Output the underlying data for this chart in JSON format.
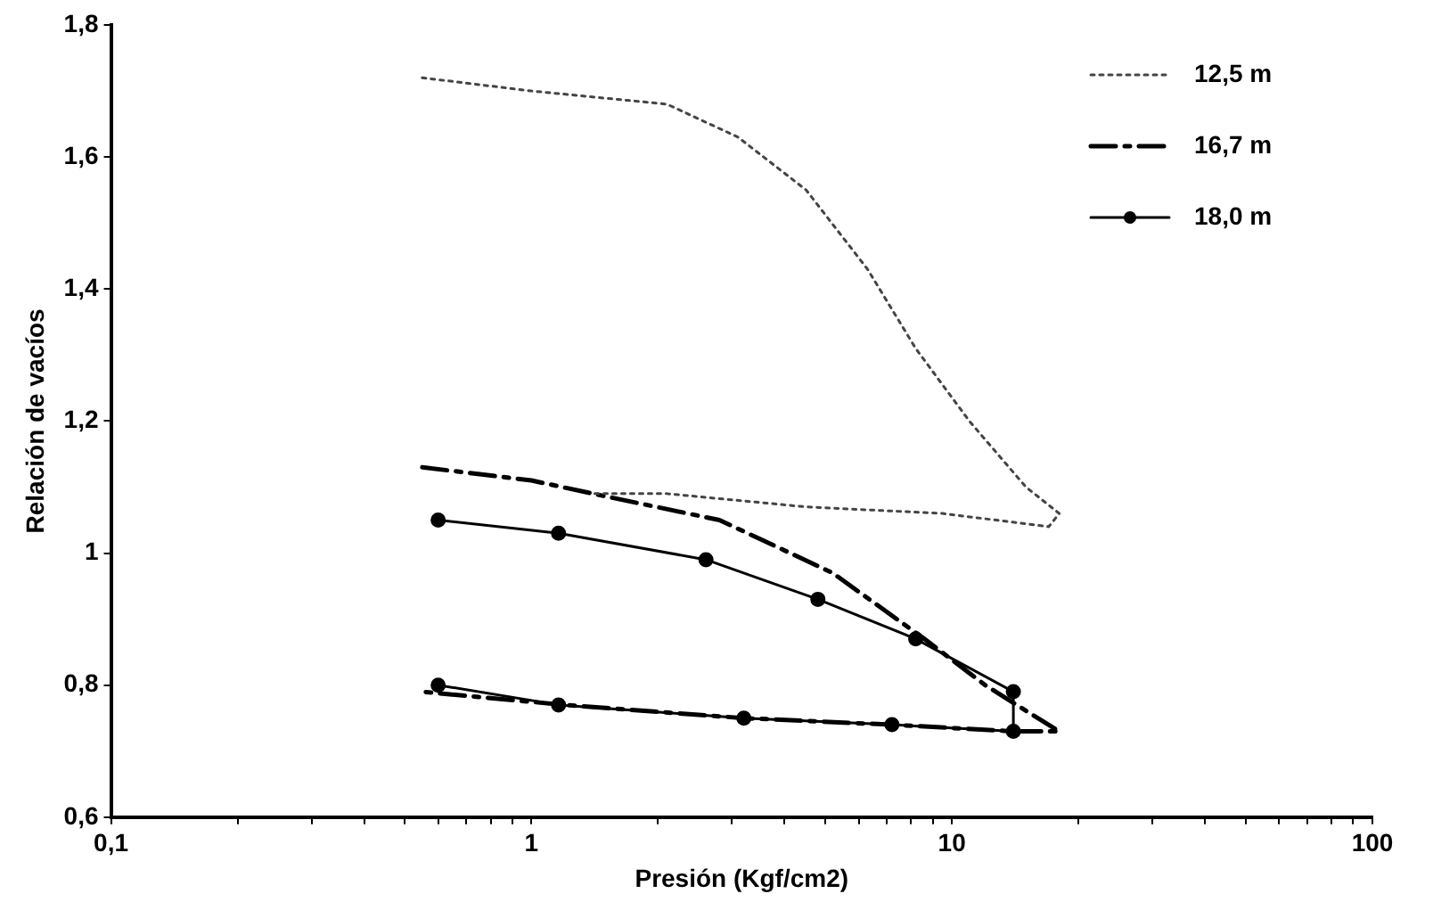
{
  "chart_data": {
    "type": "line",
    "xlabel": "Presión (Kgf/cm2)",
    "ylabel": "Relación de vacíos",
    "log": "x",
    "grid": false,
    "legend": "top right",
    "xlim": [
      0.1,
      100
    ],
    "xticks": [
      {
        "value": 0.1,
        "label": "0,1"
      },
      {
        "value": 0.2,
        "label": null
      },
      {
        "value": 0.3,
        "label": null
      },
      {
        "value": 0.4,
        "label": null
      },
      {
        "value": 0.5,
        "label": null
      },
      {
        "value": 0.6,
        "label": null
      },
      {
        "value": 0.7,
        "label": null
      },
      {
        "value": 0.8,
        "label": null
      },
      {
        "value": 0.9,
        "label": null
      },
      1,
      {
        "value": 2,
        "label": null
      },
      {
        "value": 3,
        "label": null
      },
      {
        "value": 4,
        "label": null
      },
      {
        "value": 5,
        "label": null
      },
      {
        "value": 6,
        "label": null
      },
      {
        "value": 7,
        "label": null
      },
      {
        "value": 8,
        "label": null
      },
      {
        "value": 9,
        "label": null
      },
      10,
      {
        "value": 20,
        "label": null
      },
      {
        "value": 30,
        "label": null
      },
      {
        "value": 40,
        "label": null
      },
      {
        "value": 50,
        "label": null
      },
      {
        "value": 60,
        "label": null
      },
      {
        "value": 70,
        "label": null
      },
      {
        "value": 80,
        "label": null
      },
      {
        "value": 90,
        "label": null
      },
      100
    ],
    "ylim": [
      0.6,
      1.8
    ],
    "yticks": [
      {
        "value": 0.6,
        "label": "0,6"
      },
      {
        "value": 0.8,
        "label": "0,8"
      },
      1,
      {
        "value": 1.2,
        "label": "1,2"
      },
      {
        "value": 1.4,
        "label": "1,4"
      },
      {
        "value": 1.6,
        "label": "1,6"
      },
      {
        "value": 1.8,
        "label": "1,8"
      }
    ],
    "series": [
      {
        "name": "12,5 m",
        "color": "#444444",
        "line_style": "dotted",
        "marker": "none",
        "x": [
          0.55,
          1.0,
          2.1,
          3.1,
          4.5,
          6.3,
          8.2,
          11,
          15,
          18,
          17,
          9.5,
          4.5,
          2.1,
          1.4
        ],
        "values": [
          1.72,
          1.7,
          1.68,
          1.63,
          1.55,
          1.43,
          1.31,
          1.2,
          1.1,
          1.06,
          1.04,
          1.06,
          1.07,
          1.09,
          1.09
        ]
      },
      {
        "name": "16,7 m",
        "color": "#000000",
        "line_style": "dashdot",
        "marker": "none",
        "x": [
          0.55,
          1.0,
          1.4,
          2.8,
          5.2,
          8.6,
          12,
          16,
          18,
          14,
          7.2,
          3.2,
          1.2,
          0.55
        ],
        "values": [
          1.13,
          1.11,
          1.09,
          1.05,
          0.97,
          0.87,
          0.8,
          0.75,
          0.73,
          0.73,
          0.74,
          0.75,
          0.77,
          0.79
        ]
      },
      {
        "name": "18,0 m",
        "color": "#000000",
        "line_style": "solid",
        "marker": "circle",
        "x": [
          0.6,
          1.16,
          2.6,
          4.8,
          8.2,
          14,
          14,
          7.2,
          3.2,
          1.16,
          0.6
        ],
        "values": [
          1.05,
          1.03,
          0.99,
          0.93,
          0.87,
          0.79,
          0.73,
          0.74,
          0.75,
          0.77,
          0.8
        ]
      }
    ]
  }
}
